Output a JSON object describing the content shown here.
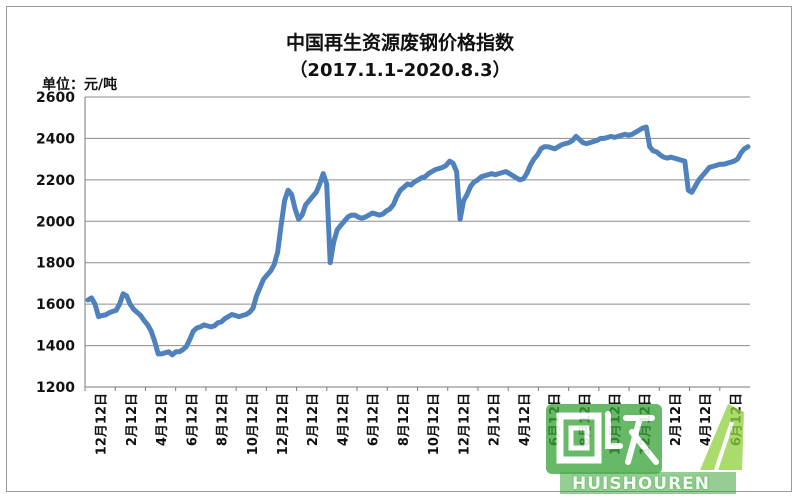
{
  "chart_data": {
    "type": "line",
    "title": "中国再生资源废钢价格指数",
    "subtitle": "（2017.1.1-2020.8.3）",
    "unit_label": "单位：元/吨",
    "ylim": [
      1200,
      2600
    ],
    "y_ticks": [
      "1200",
      "1400",
      "1600",
      "1800",
      "2000",
      "2200",
      "2400",
      "2600"
    ],
    "x_ticks": [
      "12月12日",
      "2月12日",
      "4月12日",
      "6月12日",
      "8月12日",
      "10月12日",
      "12月12日",
      "2月12日",
      "4月12日",
      "6月12日",
      "8月12日",
      "10月12日",
      "12月12日",
      "2月12日",
      "4月12日",
      "6月12日",
      "8月12日",
      "10月12日",
      "12月12日",
      "2月12日",
      "4月12日",
      "6月12日"
    ],
    "grid": true,
    "series": [
      {
        "color": "#4f81bd",
        "values": [
          1620,
          1630,
          1600,
          1540,
          1545,
          1548,
          1558,
          1565,
          1570,
          1600,
          1650,
          1640,
          1600,
          1575,
          1560,
          1545,
          1520,
          1500,
          1470,
          1420,
          1360,
          1360,
          1365,
          1370,
          1355,
          1370,
          1370,
          1380,
          1395,
          1430,
          1470,
          1485,
          1490,
          1500,
          1495,
          1490,
          1495,
          1510,
          1515,
          1530,
          1540,
          1550,
          1545,
          1540,
          1545,
          1550,
          1560,
          1580,
          1640,
          1680,
          1720,
          1740,
          1760,
          1790,
          1850,
          1980,
          2100,
          2150,
          2130,
          2060,
          2010,
          2030,
          2080,
          2100,
          2120,
          2140,
          2180,
          2230,
          2180,
          1800,
          1900,
          1960,
          1980,
          2000,
          2020,
          2030,
          2030,
          2020,
          2015,
          2020,
          2030,
          2040,
          2035,
          2030,
          2035,
          2050,
          2060,
          2080,
          2120,
          2150,
          2165,
          2180,
          2175,
          2190,
          2200,
          2210,
          2215,
          2230,
          2240,
          2250,
          2255,
          2260,
          2270,
          2290,
          2280,
          2240,
          2010,
          2100,
          2130,
          2170,
          2190,
          2200,
          2215,
          2220,
          2225,
          2230,
          2225,
          2230,
          2235,
          2240,
          2230,
          2220,
          2210,
          2200,
          2205,
          2230,
          2270,
          2300,
          2320,
          2350,
          2360,
          2360,
          2355,
          2350,
          2360,
          2370,
          2375,
          2380,
          2390,
          2410,
          2395,
          2380,
          2375,
          2380,
          2385,
          2390,
          2400,
          2400,
          2405,
          2410,
          2405,
          2410,
          2415,
          2420,
          2415,
          2420,
          2430,
          2440,
          2450,
          2455,
          2360,
          2340,
          2335,
          2320,
          2310,
          2305,
          2310,
          2305,
          2300,
          2295,
          2290,
          2150,
          2140,
          2170,
          2200,
          2220,
          2240,
          2260,
          2265,
          2270,
          2275,
          2275,
          2280,
          2285,
          2290,
          2300,
          2330,
          2350,
          2360
        ]
      }
    ]
  },
  "watermark": {
    "logo_text": "回收",
    "brand_text": "HUISHOUREN",
    "colors": {
      "green": "#3aa33a",
      "light_green": "#8fd13f"
    }
  }
}
